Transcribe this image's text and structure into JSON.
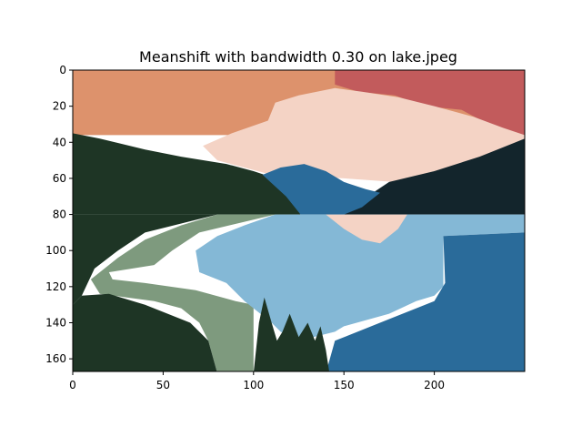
{
  "chart_data": {
    "type": "heatmap",
    "title": "Meanshift with bandwidth 0.30 on lake.jpeg",
    "xlabel": "",
    "ylabel": "",
    "xlim": [
      0,
      250
    ],
    "ylim": [
      167,
      0
    ],
    "xticks": [
      "0",
      "50",
      "100",
      "150",
      "200"
    ],
    "xtick_values": [
      0,
      50,
      100,
      150,
      200
    ],
    "yticks": [
      "0",
      "20",
      "40",
      "60",
      "80",
      "100",
      "120",
      "140",
      "160"
    ],
    "ytick_values": [
      0,
      20,
      40,
      60,
      80,
      100,
      120,
      140,
      160
    ],
    "grid": false,
    "legend": "none",
    "cluster_colors": {
      "sky_orange": "#dd926c",
      "sky_red": "#c25b5c",
      "cloud_pink": "#f4d3c5",
      "forest_green": "#1e3525",
      "mountain_dark": "#13252c",
      "water_light": "#84b8d6",
      "water_deep": "#2a6b9a",
      "sage_green": "#7e9a7e"
    },
    "regions": [
      {
        "cluster": "sky_orange",
        "polygon": [
          [
            0,
            0
          ],
          [
            250,
            0
          ],
          [
            250,
            36
          ],
          [
            0,
            36
          ]
        ]
      },
      {
        "cluster": "sky_red",
        "polygon": [
          [
            145,
            0
          ],
          [
            250,
            0
          ],
          [
            250,
            36
          ],
          [
            230,
            30
          ],
          [
            215,
            22
          ],
          [
            195,
            20
          ],
          [
            178,
            14
          ],
          [
            158,
            12
          ],
          [
            145,
            8
          ]
        ]
      },
      {
        "cluster": "cloud_pink",
        "polygon": [
          [
            112,
            18
          ],
          [
            125,
            14
          ],
          [
            145,
            10
          ],
          [
            160,
            12
          ],
          [
            180,
            15
          ],
          [
            200,
            20
          ],
          [
            222,
            26
          ],
          [
            238,
            32
          ],
          [
            250,
            36
          ],
          [
            250,
            50
          ],
          [
            200,
            56
          ],
          [
            178,
            62
          ],
          [
            150,
            60
          ],
          [
            110,
            58
          ],
          [
            80,
            50
          ],
          [
            72,
            42
          ],
          [
            88,
            35
          ],
          [
            108,
            28
          ]
        ]
      },
      {
        "cluster": "forest_green",
        "polygon": [
          [
            0,
            35
          ],
          [
            15,
            38
          ],
          [
            40,
            44
          ],
          [
            60,
            48
          ],
          [
            85,
            52
          ],
          [
            100,
            56
          ],
          [
            112,
            60
          ],
          [
            120,
            70
          ],
          [
            126,
            80
          ],
          [
            0,
            80
          ]
        ]
      },
      {
        "cluster": "mountain_dark",
        "polygon": [
          [
            175,
            62
          ],
          [
            200,
            56
          ],
          [
            225,
            48
          ],
          [
            240,
            42
          ],
          [
            250,
            38
          ],
          [
            250,
            80
          ],
          [
            150,
            80
          ],
          [
            160,
            72
          ]
        ]
      },
      {
        "cluster": "water_deep",
        "polygon": [
          [
            105,
            58
          ],
          [
            115,
            54
          ],
          [
            128,
            52
          ],
          [
            140,
            56
          ],
          [
            150,
            62
          ],
          [
            162,
            66
          ],
          [
            170,
            68
          ],
          [
            160,
            76
          ],
          [
            150,
            80
          ],
          [
            126,
            80
          ],
          [
            118,
            70
          ]
        ]
      },
      {
        "cluster": "forest_green",
        "polygon": [
          [
            0,
            80
          ],
          [
            80,
            80
          ],
          [
            40,
            90
          ],
          [
            25,
            100
          ],
          [
            12,
            110
          ],
          [
            5,
            125
          ],
          [
            0,
            130
          ]
        ]
      },
      {
        "cluster": "sage_green",
        "polygon": [
          [
            80,
            80
          ],
          [
            112,
            80
          ],
          [
            70,
            90
          ],
          [
            55,
            100
          ],
          [
            45,
            108
          ],
          [
            20,
            112
          ],
          [
            22,
            116
          ],
          [
            40,
            118
          ],
          [
            68,
            122
          ],
          [
            90,
            128
          ],
          [
            100,
            130
          ],
          [
            100,
            168
          ],
          [
            80,
            168
          ],
          [
            75,
            150
          ],
          [
            70,
            140
          ],
          [
            60,
            132
          ],
          [
            45,
            128
          ],
          [
            30,
            126
          ],
          [
            15,
            124
          ],
          [
            10,
            116
          ],
          [
            25,
            104
          ],
          [
            40,
            94
          ],
          [
            60,
            86
          ]
        ]
      },
      {
        "cluster": "water_light",
        "polygon": [
          [
            112,
            80
          ],
          [
            250,
            80
          ],
          [
            250,
            90
          ],
          [
            205,
            92
          ],
          [
            205,
            120
          ],
          [
            200,
            125
          ],
          [
            190,
            128
          ],
          [
            175,
            135
          ],
          [
            150,
            142
          ],
          [
            145,
            145
          ],
          [
            125,
            150
          ],
          [
            115,
            145
          ],
          [
            110,
            140
          ],
          [
            100,
            132
          ],
          [
            95,
            128
          ],
          [
            85,
            118
          ],
          [
            70,
            112
          ],
          [
            68,
            100
          ],
          [
            80,
            92
          ],
          [
            95,
            86
          ]
        ]
      },
      {
        "cluster": "cloud_pink",
        "polygon": [
          [
            140,
            80
          ],
          [
            185,
            80
          ],
          [
            180,
            88
          ],
          [
            170,
            96
          ],
          [
            160,
            94
          ],
          [
            150,
            88
          ]
        ]
      },
      {
        "cluster": "water_deep",
        "polygon": [
          [
            205,
            92
          ],
          [
            250,
            90
          ],
          [
            250,
            168
          ],
          [
            140,
            168
          ],
          [
            145,
            150
          ],
          [
            175,
            138
          ],
          [
            200,
            128
          ],
          [
            206,
            118
          ]
        ]
      },
      {
        "cluster": "forest_green",
        "polygon": [
          [
            0,
            130
          ],
          [
            5,
            125
          ],
          [
            20,
            124
          ],
          [
            40,
            130
          ],
          [
            65,
            140
          ],
          [
            75,
            150
          ],
          [
            80,
            168
          ],
          [
            0,
            168
          ]
        ]
      },
      {
        "cluster": "forest_green",
        "polygon": [
          [
            100,
            168
          ],
          [
            103,
            140
          ],
          [
            106,
            126
          ],
          [
            110,
            140
          ],
          [
            113,
            150
          ],
          [
            116,
            145
          ],
          [
            120,
            135
          ],
          [
            125,
            148
          ],
          [
            130,
            140
          ],
          [
            134,
            150
          ],
          [
            137,
            142
          ],
          [
            140,
            155
          ],
          [
            142,
            168
          ]
        ]
      }
    ]
  }
}
